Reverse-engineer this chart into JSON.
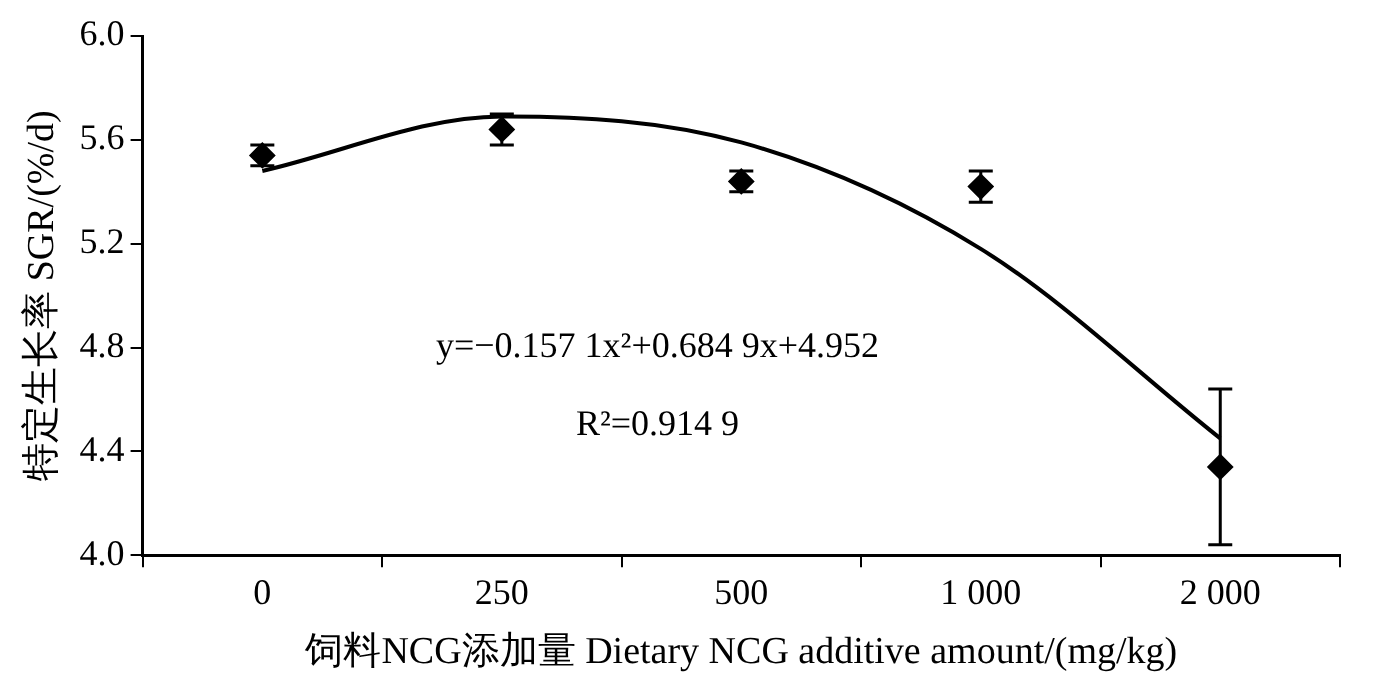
{
  "chart_data": {
    "type": "scatter",
    "xlabel": "饲料NCG添加量 Dietary NCG additive amount/(mg/kg)",
    "ylabel": "特定生长率 SGR/(%/d)",
    "categories": [
      "0",
      "250",
      "500",
      "1 000",
      "2 000"
    ],
    "series": [
      {
        "type": "line",
        "color": "#000000",
        "values": [
          5.48,
          5.69,
          5.59,
          5.18,
          4.45
        ],
        "marker": "none"
      },
      {
        "color": "#000000",
        "values": [
          5.54,
          5.64,
          5.44,
          5.42,
          4.34
        ],
        "errors": [
          0.04,
          0.06,
          0.04,
          0.06,
          0.3
        ],
        "marker": "diamond"
      }
    ],
    "ylim": [
      4.0,
      6.0
    ],
    "yticks": [
      {
        "value": 4,
        "label": "4.0"
      },
      4.4,
      4.8,
      5.2,
      5.6,
      {
        "value": 6,
        "label": "6.0"
      }
    ],
    "annotations": [
      "y=−0.157 1x²+0.684 9x+4.952",
      "R²=0.914 9"
    ],
    "grid": false,
    "legend": false
  }
}
